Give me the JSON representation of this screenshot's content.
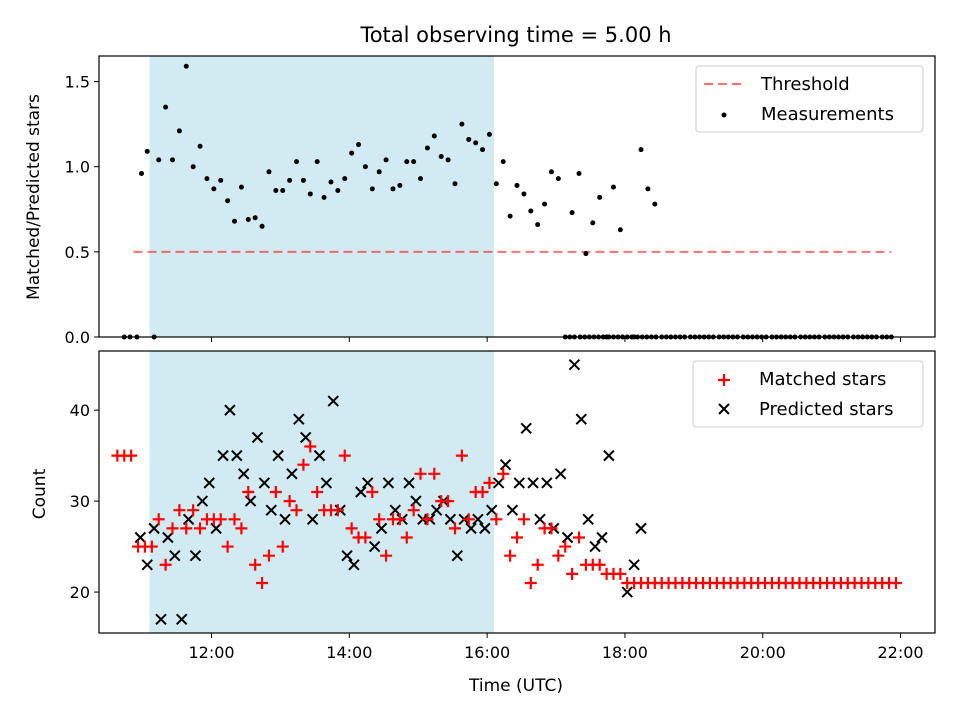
{
  "chart_data": [
    {
      "type": "scatter",
      "title": "Total observing time = 5.00 h",
      "xlabel": "",
      "ylabel": "Matched/Predicted stars",
      "xlim": [
        "10:22",
        "22:30"
      ],
      "ylim": [
        0,
        1.65
      ],
      "yticks": [
        "0.0",
        "0.5",
        "1.0",
        "1.5"
      ],
      "shaded_span": [
        "11:06",
        "16:06"
      ],
      "shaded_color": "#add8e6",
      "threshold": {
        "name": "Threshold",
        "value": 0.5,
        "x": [
          "10:52",
          "21:52"
        ],
        "color": "#ff6060"
      },
      "legend_position": "top-right",
      "series": [
        {
          "name": "Measurements",
          "color": "#000000",
          "points": [
            [
              "10:44",
              0
            ],
            [
              "10:49",
              0
            ],
            [
              "10:55",
              0
            ],
            [
              "10:59",
              0.96
            ],
            [
              "11:04",
              1.09
            ],
            [
              "11:10",
              0
            ],
            [
              "11:14",
              1.04
            ],
            [
              "11:20",
              1.35
            ],
            [
              "11:26",
              1.04
            ],
            [
              "11:32",
              1.21
            ],
            [
              "11:38",
              1.59
            ],
            [
              "11:44",
              1.0
            ],
            [
              "11:50",
              1.12
            ],
            [
              "11:56",
              0.93
            ],
            [
              "12:02",
              0.87
            ],
            [
              "12:08",
              0.92
            ],
            [
              "12:14",
              0.8
            ],
            [
              "12:20",
              0.68
            ],
            [
              "12:26",
              0.88
            ],
            [
              "12:32",
              0.69
            ],
            [
              "12:38",
              0.7
            ],
            [
              "12:44",
              0.65
            ],
            [
              "12:50",
              0.97
            ],
            [
              "12:56",
              0.86
            ],
            [
              "13:02",
              0.86
            ],
            [
              "13:08",
              0.92
            ],
            [
              "13:14",
              1.03
            ],
            [
              "13:20",
              0.92
            ],
            [
              "13:26",
              0.84
            ],
            [
              "13:32",
              1.03
            ],
            [
              "13:38",
              0.82
            ],
            [
              "13:44",
              0.91
            ],
            [
              "13:50",
              0.86
            ],
            [
              "13:56",
              0.93
            ],
            [
              "14:02",
              1.08
            ],
            [
              "14:08",
              1.13
            ],
            [
              "14:14",
              1.0
            ],
            [
              "14:20",
              0.87
            ],
            [
              "14:26",
              0.97
            ],
            [
              "14:32",
              1.04
            ],
            [
              "14:38",
              0.87
            ],
            [
              "14:44",
              0.89
            ],
            [
              "14:50",
              1.03
            ],
            [
              "14:56",
              1.03
            ],
            [
              "15:02",
              0.93
            ],
            [
              "15:08",
              1.11
            ],
            [
              "15:14",
              1.18
            ],
            [
              "15:20",
              1.06
            ],
            [
              "15:26",
              1.04
            ],
            [
              "15:32",
              0.9
            ],
            [
              "15:38",
              1.25
            ],
            [
              "15:44",
              1.16
            ],
            [
              "15:50",
              1.14
            ],
            [
              "15:56",
              1.1
            ],
            [
              "16:02",
              1.19
            ],
            [
              "16:08",
              0.9
            ],
            [
              "16:14",
              1.03
            ],
            [
              "16:20",
              0.71
            ],
            [
              "16:26",
              0.89
            ],
            [
              "16:32",
              0.84
            ],
            [
              "16:38",
              0.74
            ],
            [
              "16:44",
              0.66
            ],
            [
              "16:50",
              0.78
            ],
            [
              "16:56",
              0.97
            ],
            [
              "17:02",
              0.93
            ],
            [
              "17:14",
              0.73
            ],
            [
              "17:20",
              0.96
            ],
            [
              "17:26",
              0.49
            ],
            [
              "17:32",
              0.67
            ],
            [
              "17:38",
              0.82
            ],
            [
              "17:44",
              0
            ],
            [
              "17:50",
              0.88
            ],
            [
              "17:56",
              0.63
            ],
            [
              "18:08",
              0
            ],
            [
              "18:14",
              1.1
            ],
            [
              "18:20",
              0.87
            ],
            [
              "18:26",
              0.78
            ]
          ],
          "zero_run": {
            "value": 0,
            "from": "17:08",
            "to": "21:52",
            "count": 69
          }
        }
      ]
    },
    {
      "type": "scatter",
      "title": "",
      "xlabel": "Time (UTC)",
      "ylabel": "Count",
      "xlim": [
        "10:22",
        "22:30"
      ],
      "ylim": [
        15.5,
        46.5
      ],
      "xticks": [
        "12:00",
        "14:00",
        "16:00",
        "18:00",
        "20:00",
        "22:00"
      ],
      "yticks": [
        "20",
        "30",
        "40"
      ],
      "shaded_span": [
        "11:06",
        "16:06"
      ],
      "shaded_color": "#add8e6",
      "legend_position": "top-right",
      "series": [
        {
          "name": "Matched stars",
          "marker": "+",
          "color": "#ff0000",
          "points": [
            [
              "10:38",
              35
            ],
            [
              "10:44",
              35
            ],
            [
              "10:50",
              35
            ],
            [
              "10:56",
              25
            ],
            [
              "11:02",
              25
            ],
            [
              "11:08",
              25
            ],
            [
              "11:14",
              28
            ],
            [
              "11:20",
              23
            ],
            [
              "11:26",
              27
            ],
            [
              "11:32",
              29
            ],
            [
              "11:38",
              27
            ],
            [
              "11:44",
              29
            ],
            [
              "11:50",
              27
            ],
            [
              "11:56",
              28
            ],
            [
              "12:02",
              28
            ],
            [
              "12:08",
              28
            ],
            [
              "12:14",
              25
            ],
            [
              "12:20",
              28
            ],
            [
              "12:26",
              27
            ],
            [
              "12:32",
              31
            ],
            [
              "12:38",
              23
            ],
            [
              "12:44",
              21
            ],
            [
              "12:50",
              24
            ],
            [
              "12:56",
              31
            ],
            [
              "13:02",
              25
            ],
            [
              "13:08",
              30
            ],
            [
              "13:14",
              29
            ],
            [
              "13:20",
              34
            ],
            [
              "13:26",
              36
            ],
            [
              "13:32",
              31
            ],
            [
              "13:38",
              29
            ],
            [
              "13:44",
              29
            ],
            [
              "13:50",
              29
            ],
            [
              "13:56",
              35
            ],
            [
              "14:02",
              27
            ],
            [
              "14:08",
              26
            ],
            [
              "14:14",
              26
            ],
            [
              "14:20",
              31
            ],
            [
              "14:26",
              28
            ],
            [
              "14:32",
              24
            ],
            [
              "14:38",
              28
            ],
            [
              "14:44",
              28
            ],
            [
              "14:50",
              26
            ],
            [
              "14:56",
              29
            ],
            [
              "15:02",
              33
            ],
            [
              "15:08",
              28
            ],
            [
              "15:14",
              33
            ],
            [
              "15:20",
              30
            ],
            [
              "15:26",
              30
            ],
            [
              "15:32",
              27
            ],
            [
              "15:38",
              35
            ],
            [
              "15:44",
              28
            ],
            [
              "15:50",
              31
            ],
            [
              "15:56",
              31
            ],
            [
              "16:02",
              32
            ],
            [
              "16:08",
              28
            ],
            [
              "16:14",
              33
            ],
            [
              "16:20",
              24
            ],
            [
              "16:26",
              26
            ],
            [
              "16:32",
              28
            ],
            [
              "16:38",
              21
            ],
            [
              "16:44",
              23
            ],
            [
              "16:50",
              27
            ],
            [
              "16:56",
              27
            ],
            [
              "17:02",
              24
            ],
            [
              "17:08",
              25
            ],
            [
              "17:14",
              22
            ],
            [
              "17:20",
              26
            ],
            [
              "17:26",
              23
            ],
            [
              "17:32",
              23
            ],
            [
              "17:38",
              23
            ],
            [
              "17:44",
              22
            ],
            [
              "17:50",
              22
            ],
            [
              "17:56",
              22
            ],
            [
              "18:02",
              21
            ]
          ],
          "constant_run": {
            "value": 21,
            "from": "18:08",
            "to": "21:56",
            "count": 39
          }
        },
        {
          "name": "Predicted stars",
          "marker": "x",
          "color": "#000000",
          "points": [
            [
              "10:58",
              26
            ],
            [
              "11:04",
              23
            ],
            [
              "11:10",
              27
            ],
            [
              "11:16",
              17
            ],
            [
              "11:22",
              26
            ],
            [
              "11:28",
              24
            ],
            [
              "11:34",
              17
            ],
            [
              "11:40",
              28
            ],
            [
              "11:46",
              24
            ],
            [
              "11:52",
              30
            ],
            [
              "11:58",
              32
            ],
            [
              "12:04",
              27
            ],
            [
              "12:10",
              35
            ],
            [
              "12:16",
              40
            ],
            [
              "12:22",
              35
            ],
            [
              "12:28",
              33
            ],
            [
              "12:34",
              30
            ],
            [
              "12:40",
              37
            ],
            [
              "12:46",
              32
            ],
            [
              "12:52",
              29
            ],
            [
              "12:58",
              35
            ],
            [
              "13:04",
              28
            ],
            [
              "13:10",
              33
            ],
            [
              "13:16",
              39
            ],
            [
              "13:22",
              37
            ],
            [
              "13:28",
              28
            ],
            [
              "13:34",
              35
            ],
            [
              "13:40",
              32
            ],
            [
              "13:46",
              41
            ],
            [
              "13:52",
              29
            ],
            [
              "13:58",
              24
            ],
            [
              "14:04",
              23
            ],
            [
              "14:10",
              31
            ],
            [
              "14:16",
              32
            ],
            [
              "14:22",
              25
            ],
            [
              "14:28",
              27
            ],
            [
              "14:34",
              32
            ],
            [
              "14:40",
              29
            ],
            [
              "14:46",
              28
            ],
            [
              "14:52",
              32
            ],
            [
              "14:58",
              30
            ],
            [
              "15:04",
              28
            ],
            [
              "15:10",
              28
            ],
            [
              "15:16",
              29
            ],
            [
              "15:22",
              30
            ],
            [
              "15:28",
              28
            ],
            [
              "15:34",
              24
            ],
            [
              "15:40",
              28
            ],
            [
              "15:46",
              27
            ],
            [
              "15:52",
              28
            ],
            [
              "15:58",
              27
            ],
            [
              "16:04",
              29
            ],
            [
              "16:10",
              32
            ],
            [
              "16:16",
              34
            ],
            [
              "16:22",
              29
            ],
            [
              "16:28",
              32
            ],
            [
              "16:34",
              38
            ],
            [
              "16:40",
              32
            ],
            [
              "16:46",
              28
            ],
            [
              "16:52",
              32
            ],
            [
              "16:58",
              27
            ],
            [
              "17:04",
              33
            ],
            [
              "17:10",
              26
            ],
            [
              "17:16",
              45
            ],
            [
              "17:22",
              39
            ],
            [
              "17:28",
              28
            ],
            [
              "17:34",
              25
            ],
            [
              "17:40",
              26
            ],
            [
              "17:46",
              35
            ],
            [
              "18:02",
              20
            ],
            [
              "18:08",
              23
            ],
            [
              "18:14",
              27
            ]
          ]
        }
      ]
    }
  ]
}
